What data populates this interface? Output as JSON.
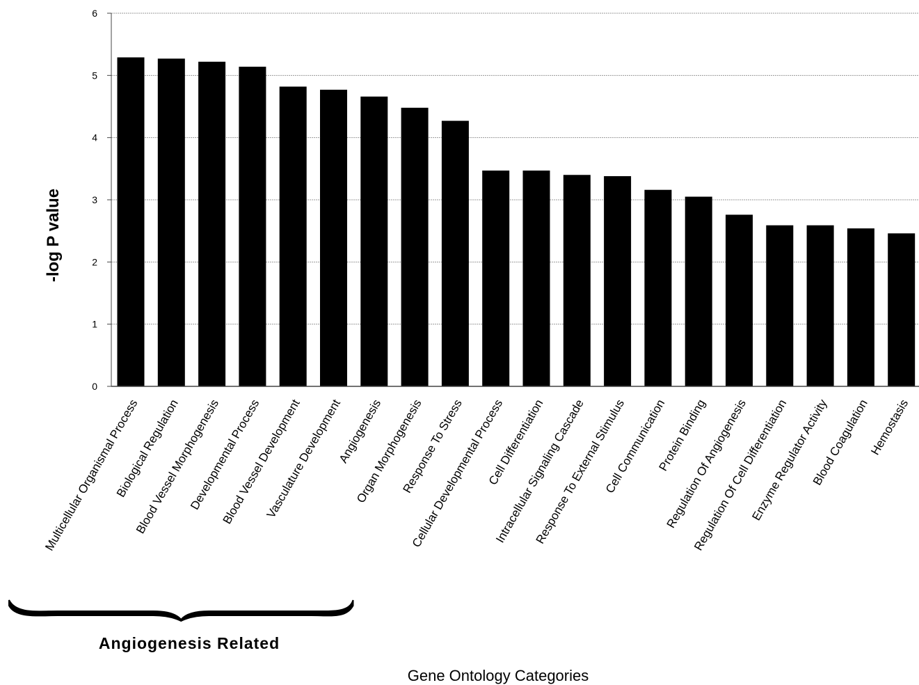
{
  "chart_data": {
    "type": "bar",
    "categories": [
      "Multicellular Organismal Process",
      "Biological Regulation",
      "Blood Vessel Morphogenesis",
      "Developmental Process",
      "Blood Vessel Development",
      "Vasculature Development",
      "Angiogenesis",
      "Organ Morphogenesis",
      "Response To Stress",
      "Cellular Developmental Process",
      "Cell Differentiation",
      "Intracellular Signaling Cascade",
      "Response To External Stimulus",
      "Cell Communication",
      "Protein Binding",
      "Regulation Of Angiogenesis",
      "Regulation Of Cell Differentiation",
      "Enzyme Regulator Activity",
      "Blood Coagulation",
      "Hemostasis"
    ],
    "values": [
      5.29,
      5.27,
      5.22,
      5.14,
      4.82,
      4.77,
      4.66,
      4.48,
      4.27,
      3.47,
      3.47,
      3.4,
      3.38,
      3.16,
      3.05,
      2.76,
      2.59,
      2.59,
      2.54,
      2.46
    ],
    "xlabel": "Gene Ontology Categories",
    "ylabel": "-log P value",
    "ylim": [
      0,
      6
    ],
    "yticks": [
      0,
      1,
      2,
      3,
      4,
      5,
      6
    ],
    "grid": true,
    "bar_color": "#000000",
    "grid_color": "#9a9a9a",
    "annotation": {
      "text": "Angiogenesis Related",
      "span_categories": [
        0,
        5
      ]
    }
  }
}
